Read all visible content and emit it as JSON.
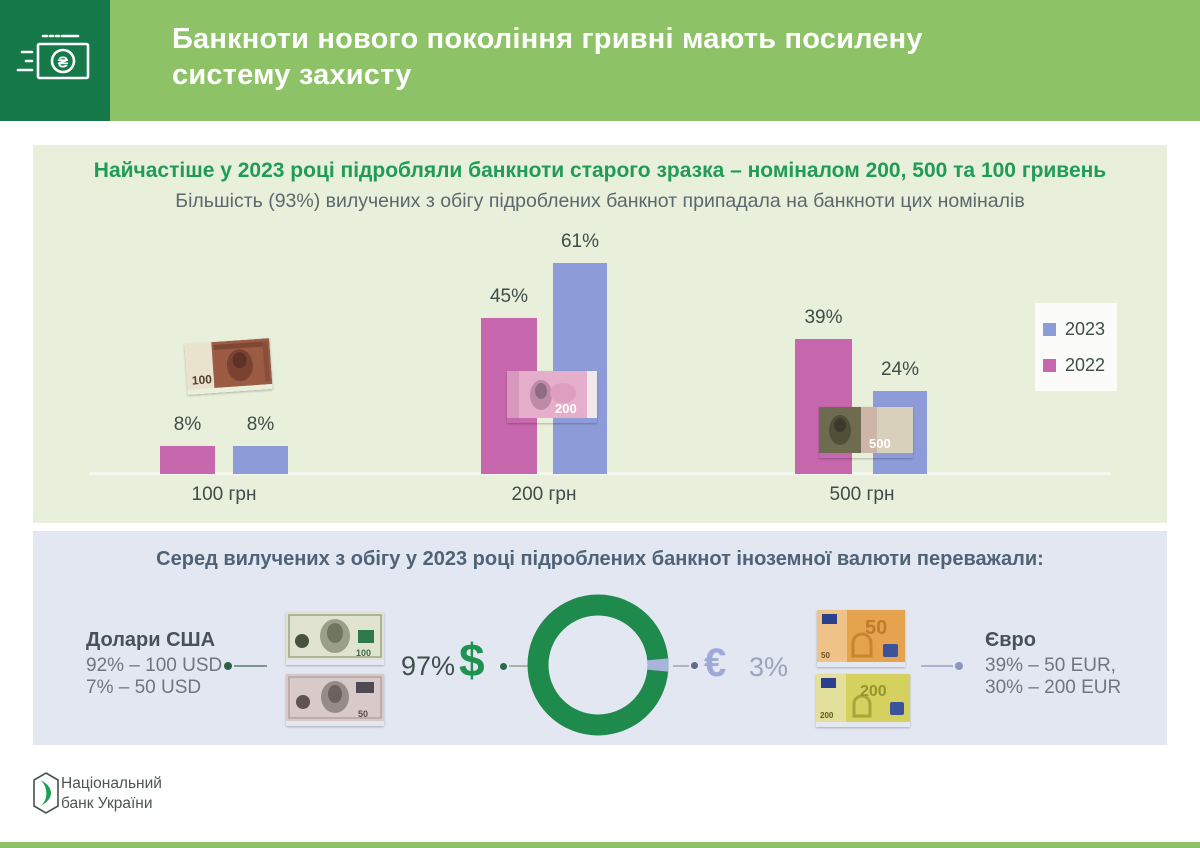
{
  "header": {
    "title_line1": "Банкноти нового покоління гривні мають посилену",
    "title_line2": "систему захисту"
  },
  "section1": {
    "title": "Найчастіше у 2023 році підробляли банкноти старого зразка – номіналом 200, 500 та 100 гривень",
    "subtitle": "Більшість (93%) вилучених з обігу підроблених банкнот припадала на банкноти цих номіналів"
  },
  "chart_data": {
    "type": "bar",
    "categories": [
      "100 грн",
      "200 грн",
      "500 грн"
    ],
    "series": [
      {
        "name": "2022",
        "color": "#c767ae",
        "values": [
          8,
          45,
          39
        ],
        "labels": [
          "8%",
          "45%",
          "39%"
        ]
      },
      {
        "name": "2023",
        "color": "#8d9cd8",
        "values": [
          8,
          61,
          24
        ],
        "labels": [
          "8%",
          "61%",
          "24%"
        ]
      }
    ],
    "legend": [
      {
        "label": "2023",
        "color": "#8d9cd8"
      },
      {
        "label": "2022",
        "color": "#c767ae"
      }
    ],
    "value_unit": "%",
    "ylim": [
      0,
      70
    ],
    "grid": false,
    "legend_position": "right"
  },
  "section2": {
    "title": "Серед вилучених з обігу у 2023 році підроблених банкнот іноземної валюти переважали:",
    "usd": {
      "heading": "Долари США",
      "line1": "92% – 100 USD",
      "line2": "7% – 50 USD",
      "pct_label": "97%",
      "symbol": "$"
    },
    "eur": {
      "heading": "Євро",
      "line1": "39% – 50 EUR,",
      "line2": "30% – 200 EUR",
      "pct_label": "3%",
      "symbol": "€"
    },
    "donut": {
      "type": "donut",
      "usd_pct": 97,
      "eur_pct": 3,
      "usd_color": "#1e8a4c",
      "eur_color": "#a9b4dd"
    }
  },
  "banknotes": {
    "uah100": "100",
    "uah200": "200",
    "uah500": "500",
    "usd100": "100",
    "usd50": "50",
    "eur50": "50",
    "eur200": "200",
    "hryvnia_sign": "₴"
  },
  "footer": {
    "org_line1": "Національний",
    "org_line2": "банк України"
  },
  "colors": {
    "brand_dark_green": "#16794a",
    "brand_green": "#8dc266",
    "accent_green": "#209c56"
  }
}
